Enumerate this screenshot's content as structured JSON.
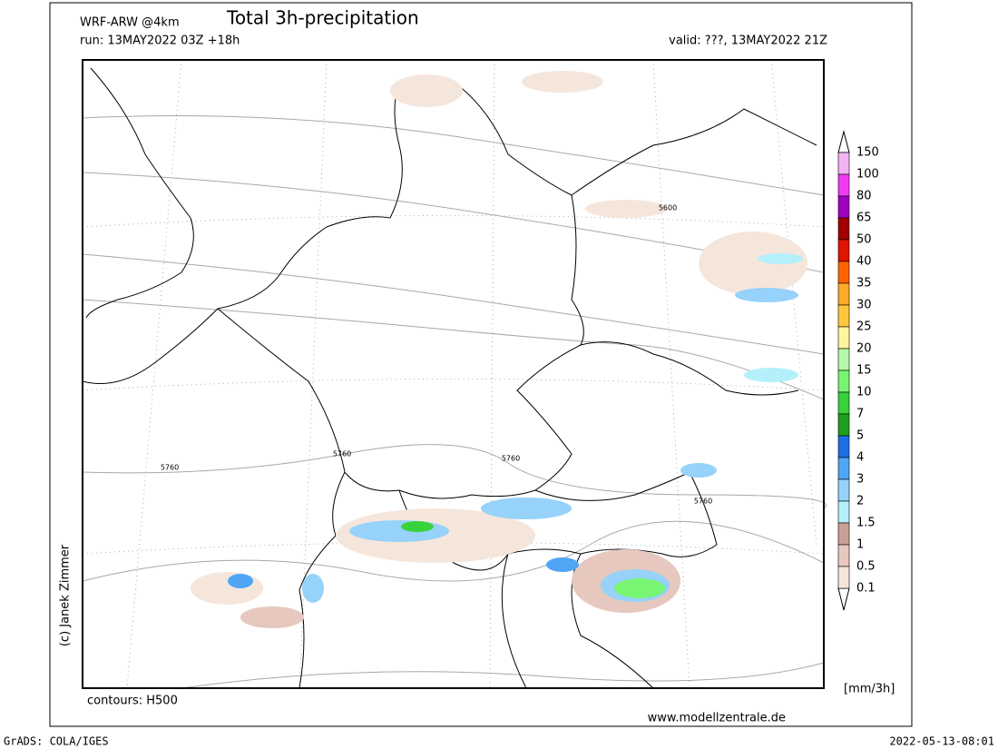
{
  "header": {
    "model": "WRF-ARW @4km",
    "title": "Total 3h-precipitation",
    "run": "run: 13MAY2022 03Z +18h",
    "valid": "valid: ???, 13MAY2022 21Z"
  },
  "map": {
    "contour_labels": [
      "5600",
      "5760",
      "5760",
      "5760",
      "5760"
    ]
  },
  "legend": {
    "labels": [
      "150",
      "100",
      "80",
      "65",
      "50",
      "40",
      "35",
      "30",
      "25",
      "20",
      "15",
      "10",
      "7",
      "5",
      "4",
      "3",
      "2",
      "1.5",
      "1",
      "0.5",
      "0.1"
    ],
    "colors": [
      "#f2b4f2",
      "#f03cf0",
      "#a000c0",
      "#a00000",
      "#e01400",
      "#ff6400",
      "#ffaa28",
      "#ffc83c",
      "#fff5a0",
      "#b4faaa",
      "#78f573",
      "#37d23c",
      "#1ea01e",
      "#1e6ee6",
      "#50a5f5",
      "#96d2fa",
      "#b4f0fa",
      "#c8a096",
      "#e6c8be",
      "#f5e6dc"
    ],
    "unit": "[mm/3h]"
  },
  "footer": {
    "contours": "contours: H500",
    "copyright": "(c) Janek Zimmer",
    "website": "www.modellzentrale.de",
    "grads": "GrADS: COLA/IGES",
    "timestamp": "2022-05-13-08:01"
  }
}
